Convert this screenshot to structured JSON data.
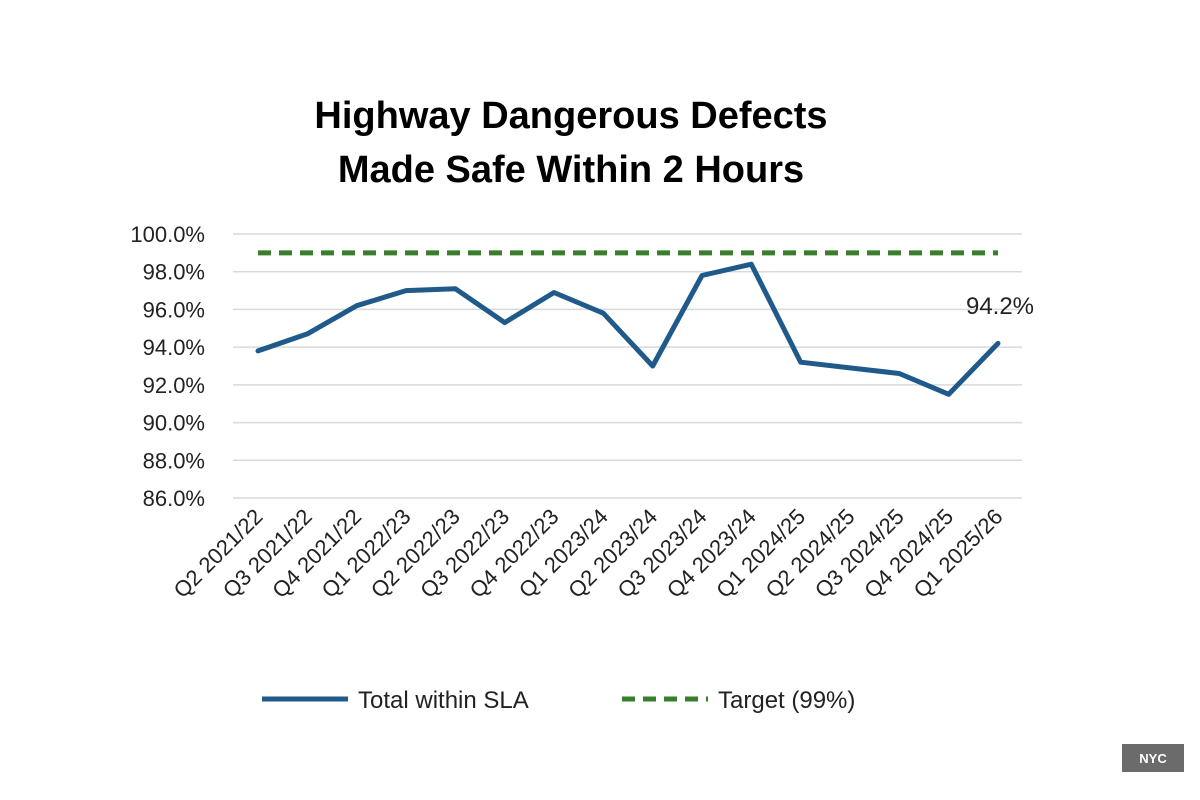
{
  "chart_data": {
    "type": "line",
    "title_lines": [
      "Highway Dangerous Defects",
      "Made Safe Within 2 Hours"
    ],
    "categories": [
      "Q2 2021/22",
      "Q3 2021/22",
      "Q4 2021/22",
      "Q1 2022/23",
      "Q2 2022/23",
      "Q3 2022/23",
      "Q4 2022/23",
      "Q1 2023/24",
      "Q2 2023/24",
      "Q3 2023/24",
      "Q4 2023/24",
      "Q1 2024/25",
      "Q2 2024/25",
      "Q3 2024/25",
      "Q4 2024/25",
      "Q1 2025/26"
    ],
    "series": [
      {
        "name": "Total within SLA",
        "color": "#1f5a8b",
        "style": "solid",
        "values": [
          93.8,
          94.7,
          96.2,
          97.0,
          97.1,
          95.3,
          96.9,
          95.8,
          93.0,
          97.8,
          98.4,
          93.2,
          92.9,
          92.6,
          91.5,
          94.2
        ]
      },
      {
        "name": "Target (99%)",
        "color": "#3a7d2a",
        "style": "dashed",
        "values": [
          99,
          99,
          99,
          99,
          99,
          99,
          99,
          99,
          99,
          99,
          99,
          99,
          99,
          99,
          99,
          99
        ]
      }
    ],
    "yticks": [
      "100.0%",
      "98.0%",
      "96.0%",
      "94.0%",
      "92.0%",
      "90.0%",
      "88.0%",
      "86.0%"
    ],
    "ylim": [
      86,
      100
    ],
    "grid": true,
    "legend_position": "bottom",
    "annotation": {
      "text": "94.2%",
      "category": "Q1 2025/26"
    }
  },
  "watermark": "NYC"
}
